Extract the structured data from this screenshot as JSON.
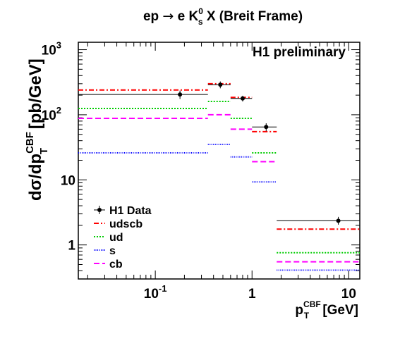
{
  "chart_data": {
    "type": "scatter",
    "title_parts": {
      "pre": "ep ",
      "arrow": "→",
      "mid": " e K",
      "sup": "0",
      "sub": "s",
      "post": " X (Breit Frame)"
    },
    "annotation": "H1 preliminary",
    "ylabel_parts": {
      "main": "dσ/dp",
      "sup": "CBF",
      "sub": "T",
      "unit": " [pb/GeV]"
    },
    "xlabel_parts": {
      "main": "p",
      "sup": "CBF",
      "sub": "T",
      "unit": " [GeV]"
    },
    "x_scale": "log",
    "y_scale": "log",
    "xlim": [
      0.016,
      13
    ],
    "ylim": [
      0.3,
      1300
    ],
    "x_ticks": [
      {
        "v": 0.1,
        "base": "10",
        "exp": "-1"
      },
      {
        "v": 1,
        "base": "1",
        "exp": ""
      },
      {
        "v": 10,
        "base": "10",
        "exp": ""
      }
    ],
    "y_ticks": [
      {
        "v": 1,
        "base": "1",
        "exp": ""
      },
      {
        "v": 10,
        "base": "10",
        "exp": ""
      },
      {
        "v": 100,
        "base": "10",
        "exp": "2"
      },
      {
        "v": 1000,
        "base": "10",
        "exp": "3"
      }
    ],
    "legend_position": "bottom-left",
    "data": {
      "name": "H1 Data",
      "color": "#000000",
      "points": [
        {
          "x": 0.18,
          "y": 205,
          "xlow": 0.016,
          "xhigh": 0.35,
          "elow": 175,
          "ehigh": 235
        },
        {
          "x": 0.47,
          "y": 290,
          "xlow": 0.35,
          "xhigh": 0.6,
          "elow": 255,
          "ehigh": 325
        },
        {
          "x": 0.8,
          "y": 178,
          "xlow": 0.6,
          "xhigh": 1.0,
          "elow": 160,
          "ehigh": 196
        },
        {
          "x": 1.4,
          "y": 65,
          "xlow": 1.0,
          "xhigh": 1.8,
          "elow": 56,
          "ehigh": 74
        },
        {
          "x": 7.8,
          "y": 2.35,
          "xlow": 1.8,
          "xhigh": 13,
          "elow": 2.05,
          "ehigh": 2.7
        }
      ]
    },
    "bins": [
      0.016,
      0.35,
      0.6,
      1.0,
      1.8,
      13
    ],
    "series": [
      {
        "name": "udscb",
        "color": "#ff0000",
        "dash": "7,3,2,3",
        "values": [
          240,
          300,
          185,
          55,
          1.75
        ]
      },
      {
        "name": "ud",
        "color": "#00cc00",
        "dash": "2,2",
        "values": [
          125,
          160,
          88,
          26,
          0.76
        ]
      },
      {
        "name": "s",
        "color": "#0000ff",
        "dash": "1,1.5",
        "values": [
          26,
          35,
          22.5,
          9.3,
          0.41
        ]
      },
      {
        "name": "cb",
        "color": "#ff00ff",
        "dash": "8,4",
        "values": [
          88,
          100,
          60,
          19,
          0.55
        ]
      }
    ]
  }
}
